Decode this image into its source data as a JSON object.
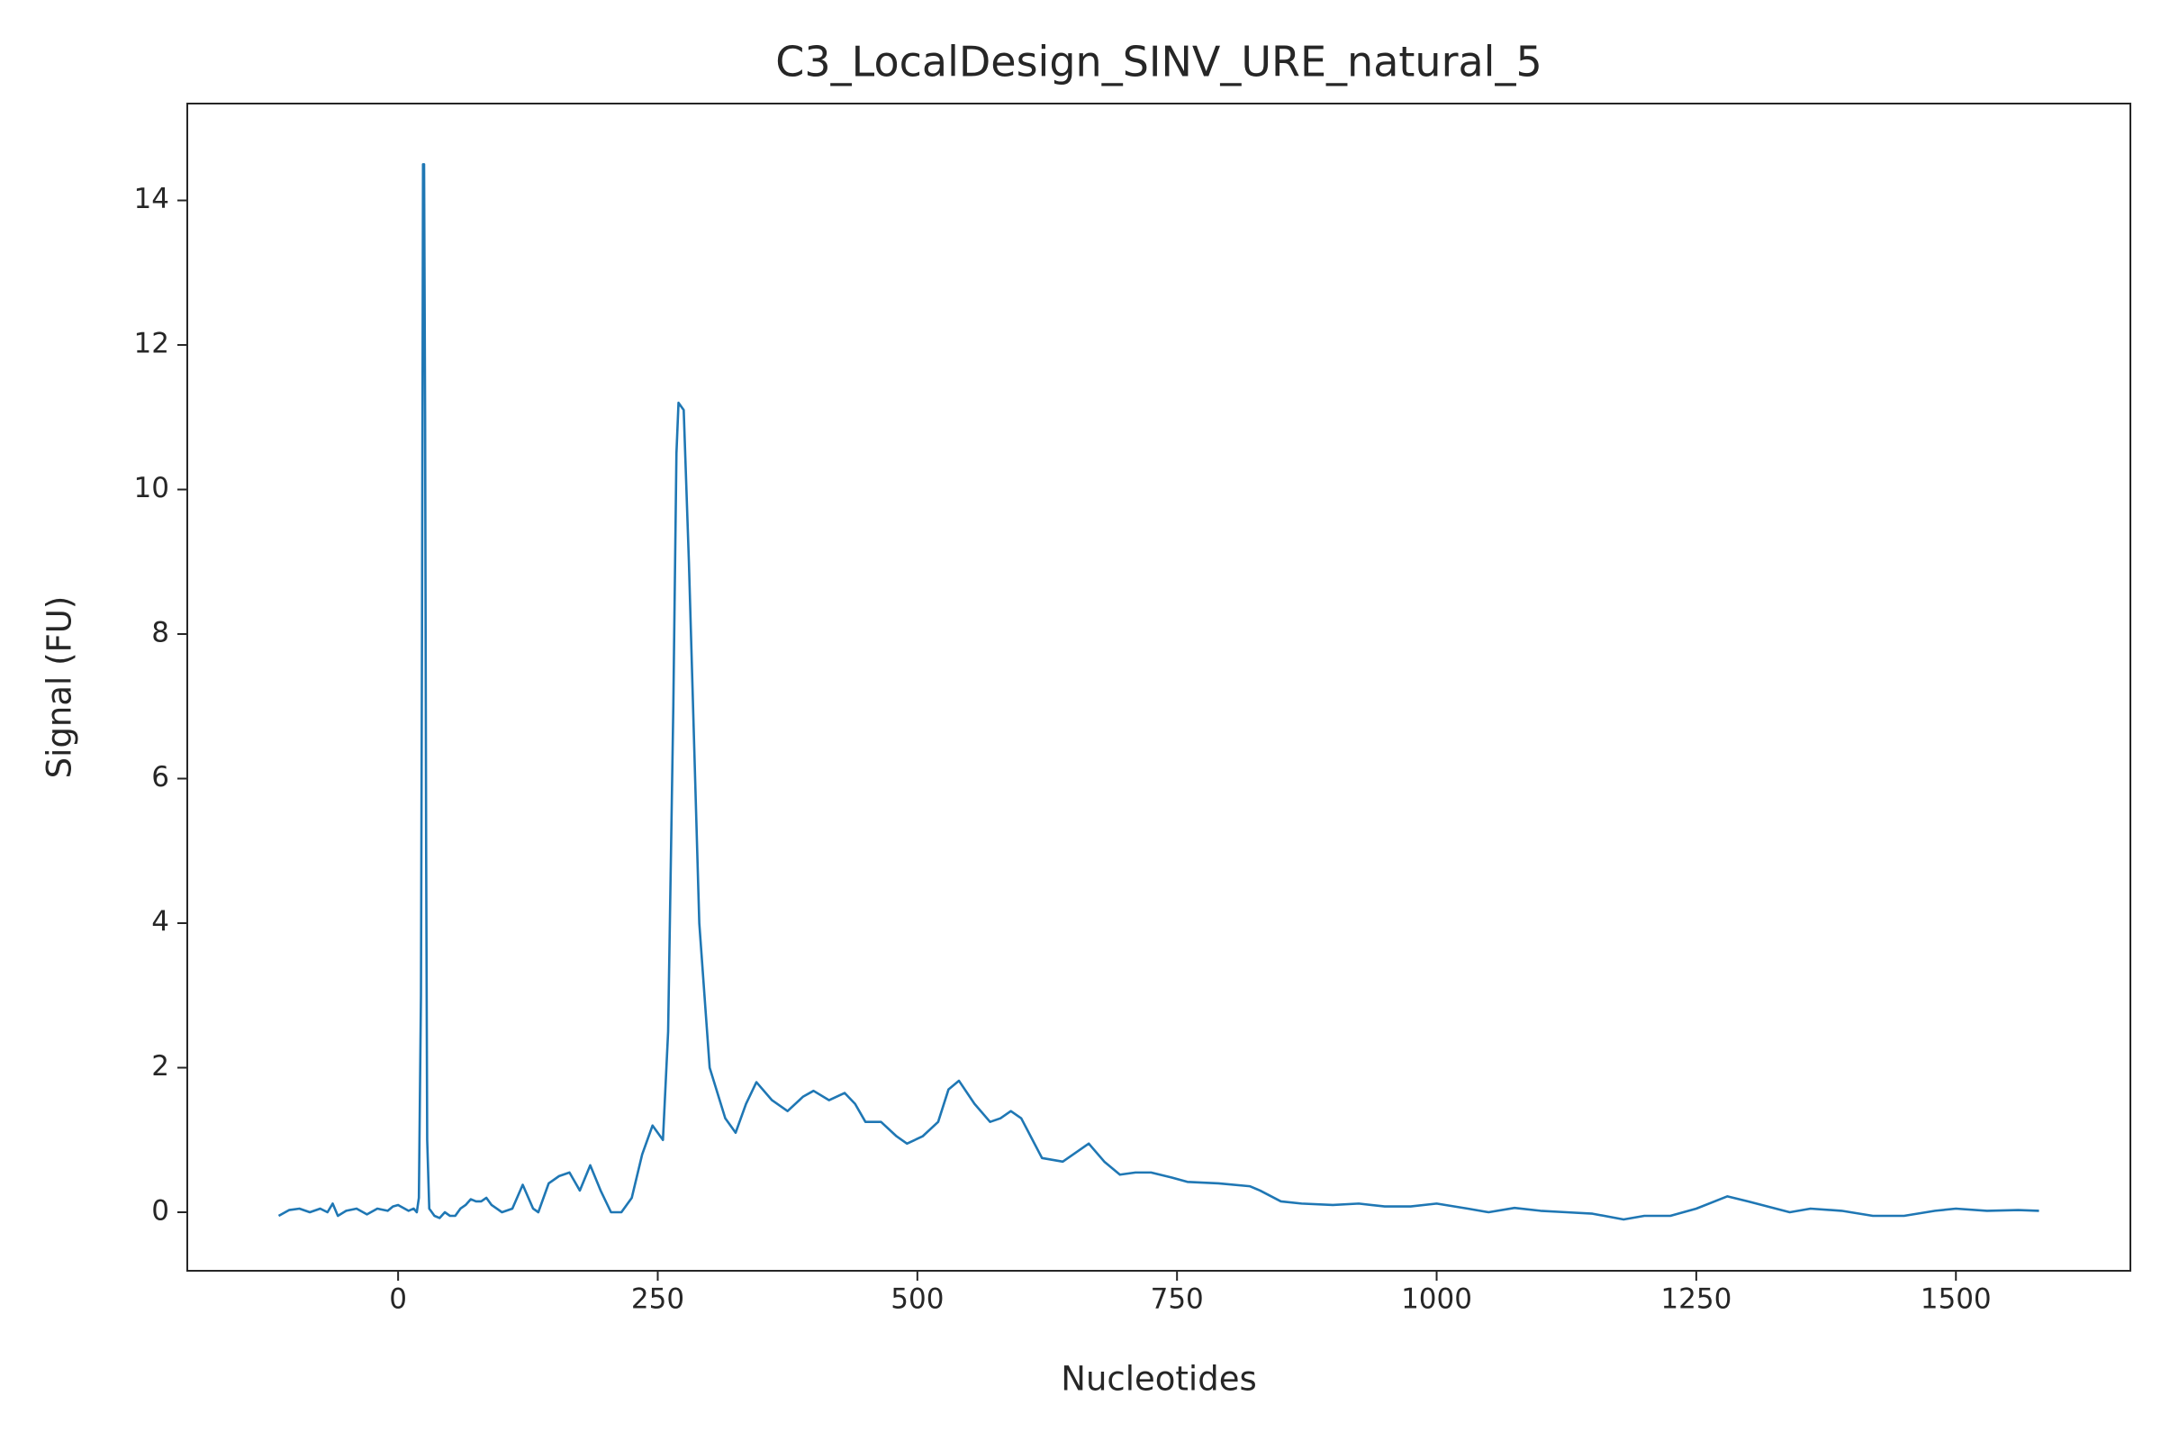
{
  "chart_data": {
    "type": "line",
    "title": "C3_LocalDesign_SINV_URE_natural_5",
    "xlabel": "Nucleotides",
    "ylabel": "Signal (FU)",
    "x": [
      -115,
      -105,
      -95,
      -85,
      -75,
      -68,
      -63,
      -58,
      -50,
      -40,
      -30,
      -20,
      -10,
      -5,
      0,
      10,
      15,
      18,
      20,
      22,
      23,
      24,
      25,
      26,
      27,
      28,
      30,
      35,
      40,
      45,
      50,
      55,
      60,
      65,
      70,
      75,
      80,
      85,
      90,
      95,
      100,
      110,
      120,
      130,
      135,
      145,
      155,
      165,
      175,
      185,
      195,
      205,
      215,
      225,
      235,
      245,
      255,
      260,
      265,
      268,
      270,
      275,
      280,
      290,
      300,
      315,
      325,
      335,
      345,
      360,
      375,
      390,
      400,
      415,
      430,
      440,
      450,
      465,
      480,
      490,
      505,
      520,
      530,
      540,
      555,
      570,
      580,
      590,
      600,
      620,
      640,
      655,
      665,
      680,
      695,
      710,
      725,
      745,
      760,
      790,
      820,
      830,
      850,
      870,
      900,
      925,
      950,
      975,
      1000,
      1030,
      1050,
      1075,
      1100,
      1125,
      1150,
      1180,
      1200,
      1225,
      1250,
      1280,
      1300,
      1340,
      1360,
      1390,
      1420,
      1450,
      1480,
      1500,
      1530,
      1560,
      1580
    ],
    "series": [
      {
        "name": "Signal",
        "color": "#1f77b4",
        "values": [
          -0.05,
          0.03,
          0.05,
          0.0,
          0.05,
          0.0,
          0.12,
          -0.05,
          0.02,
          0.05,
          -0.03,
          0.05,
          0.02,
          0.08,
          0.1,
          0.02,
          0.05,
          0.0,
          0.2,
          3,
          8,
          14.5,
          14.5,
          11,
          5,
          1,
          0.05,
          -0.05,
          -0.08,
          0.0,
          -0.05,
          -0.05,
          0.05,
          0.1,
          0.18,
          0.15,
          0.15,
          0.2,
          0.1,
          0.05,
          0.0,
          0.05,
          0.38,
          0.05,
          0.0,
          0.4,
          0.5,
          0.55,
          0.3,
          0.65,
          0.3,
          0.0,
          0.0,
          0.2,
          0.8,
          1.2,
          1.0,
          2.5,
          7,
          10.5,
          11.2,
          11.1,
          9,
          4,
          2,
          1.3,
          1.1,
          1.5,
          1.8,
          1.55,
          1.4,
          1.6,
          1.68,
          1.55,
          1.65,
          1.5,
          1.25,
          1.25,
          1.05,
          0.95,
          1.05,
          1.25,
          1.7,
          1.82,
          1.5,
          1.25,
          1.3,
          1.4,
          1.3,
          0.75,
          0.7,
          0.85,
          0.95,
          0.7,
          0.52,
          0.55,
          0.55,
          0.48,
          0.42,
          0.4,
          0.36,
          0.3,
          0.15,
          0.12,
          0.1,
          0.12,
          0.08,
          0.08,
          0.12,
          0.05,
          0.0,
          0.06,
          0.02,
          0.0,
          -0.02,
          -0.1,
          -0.05,
          -0.05,
          0.05,
          0.22,
          0.15,
          0.0,
          0.05,
          0.02,
          -0.05,
          -0.05,
          0.02,
          0.05,
          0.02,
          0.03,
          0.02
        ]
      }
    ],
    "xlim": [
      -203,
      1668
    ],
    "ylim": [
      -0.81,
      15.34
    ],
    "xticks": [
      0,
      250,
      500,
      750,
      1000,
      1250,
      1500
    ],
    "yticks": [
      0,
      2,
      4,
      6,
      8,
      10,
      12,
      14
    ]
  }
}
